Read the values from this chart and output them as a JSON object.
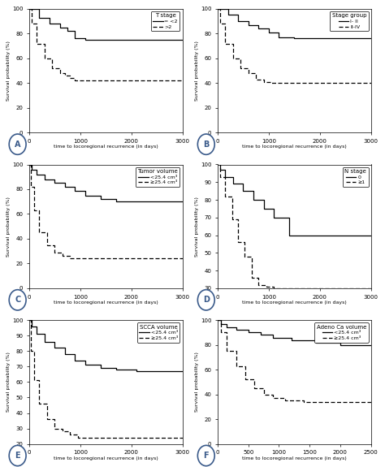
{
  "panels": [
    {
      "label": "A",
      "title": "T stage",
      "legend_entries": [
        "= <2",
        ">2"
      ],
      "xlim": [
        0,
        3000
      ],
      "ylim": [
        0,
        100
      ],
      "xticks": [
        0,
        1000,
        2000,
        3000
      ],
      "yticks": [
        0,
        20,
        40,
        60,
        80,
        100
      ],
      "curve1_x": [
        0,
        200,
        200,
        400,
        400,
        600,
        600,
        750,
        750,
        900,
        900,
        1100,
        1100,
        3000
      ],
      "curve1_y": [
        100,
        100,
        93,
        93,
        88,
        88,
        85,
        85,
        82,
        82,
        76,
        76,
        75,
        75
      ],
      "curve2_x": [
        0,
        50,
        50,
        150,
        150,
        300,
        300,
        450,
        450,
        600,
        600,
        700,
        700,
        800,
        800,
        900,
        900,
        1100,
        1100,
        3000
      ],
      "curve2_y": [
        100,
        100,
        88,
        88,
        72,
        72,
        60,
        60,
        52,
        52,
        48,
        48,
        46,
        46,
        44,
        44,
        42,
        42,
        42,
        42
      ]
    },
    {
      "label": "B",
      "title": "Stage group",
      "legend_entries": [
        "I- II",
        "II-IV"
      ],
      "xlim": [
        0,
        3000
      ],
      "ylim": [
        0,
        100
      ],
      "xticks": [
        0,
        1000,
        2000,
        3000
      ],
      "yticks": [
        0,
        20,
        40,
        60,
        80,
        100
      ],
      "curve1_x": [
        0,
        200,
        200,
        400,
        400,
        600,
        600,
        800,
        800,
        1000,
        1000,
        1200,
        1200,
        1500,
        1500,
        3000
      ],
      "curve1_y": [
        100,
        100,
        95,
        95,
        90,
        90,
        87,
        87,
        84,
        84,
        81,
        81,
        77,
        77,
        76,
        76
      ],
      "curve2_x": [
        0,
        50,
        50,
        150,
        150,
        300,
        300,
        450,
        450,
        600,
        600,
        750,
        750,
        900,
        900,
        1050,
        1050,
        3000
      ],
      "curve2_y": [
        100,
        100,
        88,
        88,
        72,
        72,
        60,
        60,
        52,
        52,
        48,
        48,
        43,
        43,
        41,
        41,
        40,
        40
      ]
    },
    {
      "label": "C",
      "title": "Tumor volume",
      "legend_entries": [
        "<25.4 cm³",
        "≥25.4 cm³"
      ],
      "xlim": [
        0,
        3000
      ],
      "ylim": [
        0,
        100
      ],
      "xticks": [
        0,
        1000,
        2000,
        3000
      ],
      "yticks": [
        0,
        20,
        40,
        60,
        80,
        100
      ],
      "curve1_x": [
        0,
        50,
        50,
        150,
        150,
        300,
        300,
        500,
        500,
        700,
        700,
        900,
        900,
        1100,
        1100,
        1400,
        1400,
        1700,
        1700,
        3000
      ],
      "curve1_y": [
        100,
        100,
        96,
        96,
        92,
        92,
        88,
        88,
        85,
        85,
        82,
        82,
        79,
        79,
        75,
        75,
        72,
        72,
        70,
        70
      ],
      "curve2_x": [
        0,
        30,
        30,
        100,
        100,
        200,
        200,
        350,
        350,
        500,
        500,
        650,
        650,
        800,
        800,
        1000,
        1000,
        3000
      ],
      "curve2_y": [
        100,
        100,
        82,
        82,
        63,
        63,
        45,
        45,
        35,
        35,
        29,
        29,
        26,
        26,
        24,
        24,
        24,
        24
      ]
    },
    {
      "label": "D",
      "title": "N stage",
      "legend_entries": [
        "0",
        "≥1"
      ],
      "xlim": [
        0,
        3000
      ],
      "ylim": [
        30,
        100
      ],
      "xticks": [
        0,
        1000,
        2000,
        3000
      ],
      "yticks": [
        30,
        40,
        50,
        60,
        70,
        80,
        90,
        100
      ],
      "curve1_x": [
        0,
        50,
        50,
        150,
        150,
        300,
        300,
        500,
        500,
        700,
        700,
        900,
        900,
        1100,
        1100,
        1400,
        1400,
        3000
      ],
      "curve1_y": [
        100,
        100,
        97,
        97,
        93,
        93,
        89,
        89,
        85,
        85,
        80,
        80,
        75,
        75,
        70,
        70,
        60,
        60
      ],
      "curve2_x": [
        0,
        50,
        50,
        150,
        150,
        280,
        280,
        400,
        400,
        530,
        530,
        660,
        660,
        800,
        800,
        950,
        950,
        1100,
        1100,
        3000
      ],
      "curve2_y": [
        100,
        100,
        93,
        93,
        82,
        82,
        69,
        69,
        56,
        56,
        48,
        48,
        36,
        36,
        32,
        32,
        31,
        31,
        30,
        30
      ]
    },
    {
      "label": "E",
      "title": "SCCA volume",
      "legend_entries": [
        "<25.4 cm³",
        "≥25.4 cm³"
      ],
      "xlim": [
        0,
        3000
      ],
      "ylim": [
        20,
        100
      ],
      "xticks": [
        0,
        1000,
        2000,
        3000
      ],
      "yticks": [
        20,
        30,
        40,
        50,
        60,
        70,
        80,
        90,
        100
      ],
      "curve1_x": [
        0,
        50,
        50,
        150,
        150,
        300,
        300,
        500,
        500,
        700,
        700,
        900,
        900,
        1100,
        1100,
        1400,
        1400,
        1700,
        1700,
        2100,
        2100,
        3000
      ],
      "curve1_y": [
        100,
        100,
        96,
        96,
        91,
        91,
        86,
        86,
        82,
        82,
        78,
        78,
        74,
        74,
        71,
        71,
        69,
        69,
        68,
        68,
        67,
        67
      ],
      "curve2_x": [
        0,
        30,
        30,
        100,
        100,
        200,
        200,
        350,
        350,
        500,
        500,
        650,
        650,
        800,
        800,
        950,
        950,
        1100,
        1100,
        3000
      ],
      "curve2_y": [
        100,
        100,
        80,
        80,
        61,
        61,
        46,
        46,
        36,
        36,
        30,
        30,
        28,
        28,
        26,
        26,
        24,
        24,
        24,
        24
      ]
    },
    {
      "label": "F",
      "title": "Adeno Ca volume",
      "legend_entries": [
        "<25.4 cm³",
        "≥25.4 cm³"
      ],
      "xlim": [
        0,
        2500
      ],
      "ylim": [
        0,
        100
      ],
      "xticks": [
        0,
        500,
        1000,
        1500,
        2000,
        2500
      ],
      "yticks": [
        0,
        20,
        40,
        60,
        80,
        100
      ],
      "curve1_x": [
        0,
        50,
        50,
        150,
        150,
        300,
        300,
        500,
        500,
        700,
        700,
        900,
        900,
        1200,
        1200,
        1600,
        1600,
        2000,
        2000,
        2500
      ],
      "curve1_y": [
        100,
        100,
        97,
        97,
        94,
        94,
        92,
        92,
        90,
        90,
        88,
        88,
        86,
        86,
        84,
        84,
        82,
        82,
        80,
        80
      ],
      "curve2_x": [
        0,
        50,
        50,
        150,
        150,
        300,
        300,
        450,
        450,
        600,
        600,
        750,
        750,
        900,
        900,
        1100,
        1100,
        1400,
        1400,
        2500
      ],
      "curve2_y": [
        100,
        100,
        90,
        90,
        75,
        75,
        63,
        63,
        52,
        52,
        45,
        45,
        40,
        40,
        37,
        37,
        35,
        35,
        34,
        34
      ]
    }
  ],
  "line_color": "#000000",
  "bg_color": "#ffffff",
  "font_size": 5.5,
  "label_font_size": 7,
  "circle_color": "#3a5a8a"
}
